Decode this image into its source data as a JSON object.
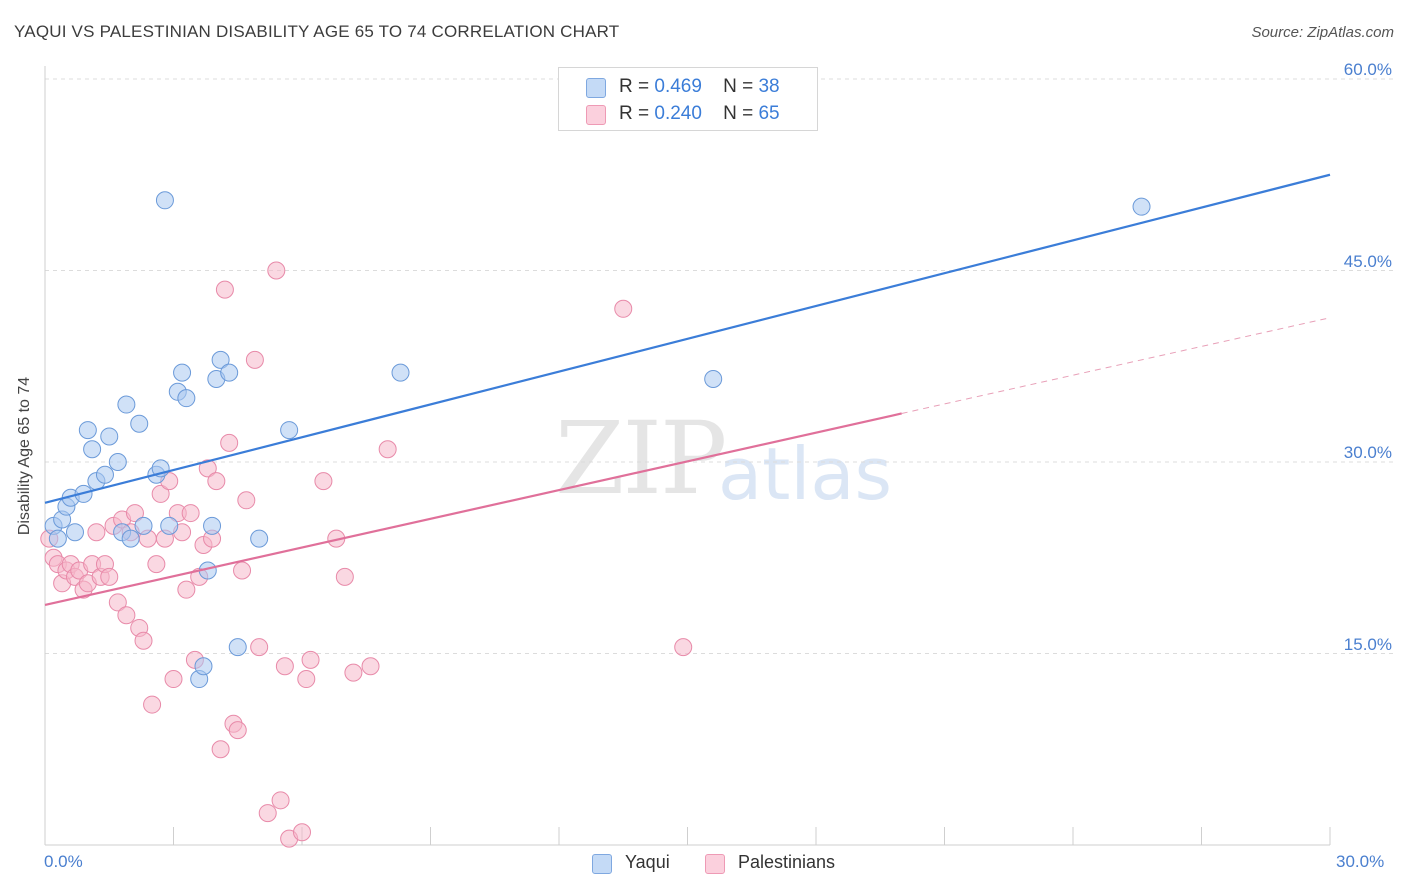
{
  "header": {
    "title": "YAQUI VS PALESTINIAN DISABILITY AGE 65 TO 74 CORRELATION CHART",
    "source": "Source: ZipAtlas.com"
  },
  "watermark": {
    "zip": "ZIP",
    "atlas": "atlas"
  },
  "legend_top": {
    "rows": [
      {
        "r_label": "R =",
        "r_value": "0.469",
        "n_label": "N =",
        "n_value": "38",
        "color": "#a9c8f0"
      },
      {
        "r_label": "R =",
        "r_value": "0.240",
        "n_label": "N =",
        "n_value": "65",
        "color": "#f5b8cb"
      }
    ]
  },
  "legend_bottom": {
    "items": [
      {
        "label": "Yaqui",
        "color": "#a9c8f0"
      },
      {
        "label": "Palestinians",
        "color": "#f5b8cb"
      }
    ]
  },
  "chart_data": {
    "type": "scatter",
    "title": "YAQUI VS PALESTINIAN DISABILITY AGE 65 TO 74 CORRELATION CHART",
    "xlabel": "",
    "ylabel": "Disability Age 65 to 74",
    "xlim": [
      0,
      30
    ],
    "ylim": [
      0,
      60
    ],
    "x_tick_labels": [
      "0.0%",
      "30.0%"
    ],
    "y_ticks": [
      15,
      30,
      45,
      60
    ],
    "y_tick_labels": [
      "15.0%",
      "30.0%",
      "45.0%",
      "60.0%"
    ],
    "grid": true,
    "colors": {
      "yaqui": "#3b7dd8",
      "yaqui_fill": "#a9c8f0",
      "pal": "#e0709a",
      "pal_fill": "#f5b8cb"
    },
    "series": [
      {
        "name": "Yaqui",
        "r": 0.469,
        "n": 38,
        "trend": {
          "x": [
            0,
            30
          ],
          "y": [
            26.8,
            52.5
          ],
          "dashed_from": null
        },
        "points": [
          [
            0.2,
            25.0
          ],
          [
            0.3,
            24.0
          ],
          [
            0.4,
            25.5
          ],
          [
            0.5,
            26.5
          ],
          [
            0.6,
            27.2
          ],
          [
            0.7,
            24.5
          ],
          [
            0.9,
            27.5
          ],
          [
            1.0,
            32.5
          ],
          [
            1.1,
            31.0
          ],
          [
            1.2,
            28.5
          ],
          [
            1.4,
            29.0
          ],
          [
            1.5,
            32.0
          ],
          [
            1.7,
            30.0
          ],
          [
            1.8,
            24.5
          ],
          [
            1.9,
            34.5
          ],
          [
            2.0,
            24.0
          ],
          [
            2.2,
            33.0
          ],
          [
            2.3,
            25.0
          ],
          [
            2.6,
            29.0
          ],
          [
            2.7,
            29.5
          ],
          [
            2.8,
            50.5
          ],
          [
            2.9,
            25.0
          ],
          [
            3.1,
            35.5
          ],
          [
            3.2,
            37.0
          ],
          [
            3.3,
            35.0
          ],
          [
            3.6,
            13.0
          ],
          [
            3.7,
            14.0
          ],
          [
            3.8,
            21.5
          ],
          [
            3.9,
            25.0
          ],
          [
            4.0,
            36.5
          ],
          [
            4.1,
            38.0
          ],
          [
            4.3,
            37.0
          ],
          [
            4.5,
            15.5
          ],
          [
            5.0,
            24.0
          ],
          [
            5.7,
            32.5
          ],
          [
            8.3,
            37.0
          ],
          [
            15.6,
            36.5
          ],
          [
            25.6,
            50.0
          ]
        ]
      },
      {
        "name": "Palestinians",
        "r": 0.24,
        "n": 65,
        "trend": {
          "x": [
            0,
            30
          ],
          "y": [
            18.8,
            41.3
          ],
          "dashed_from": 20.0
        },
        "points": [
          [
            0.1,
            24.0
          ],
          [
            0.2,
            22.5
          ],
          [
            0.3,
            22.0
          ],
          [
            0.4,
            20.5
          ],
          [
            0.5,
            21.5
          ],
          [
            0.6,
            22.0
          ],
          [
            0.7,
            21.0
          ],
          [
            0.8,
            21.5
          ],
          [
            0.9,
            20.0
          ],
          [
            1.0,
            20.5
          ],
          [
            1.1,
            22.0
          ],
          [
            1.2,
            24.5
          ],
          [
            1.3,
            21.0
          ],
          [
            1.4,
            22.0
          ],
          [
            1.5,
            21.0
          ],
          [
            1.6,
            25.0
          ],
          [
            1.7,
            19.0
          ],
          [
            1.8,
            25.5
          ],
          [
            1.9,
            18.0
          ],
          [
            2.0,
            24.5
          ],
          [
            2.1,
            26.0
          ],
          [
            2.2,
            17.0
          ],
          [
            2.3,
            16.0
          ],
          [
            2.4,
            24.0
          ],
          [
            2.5,
            11.0
          ],
          [
            2.6,
            22.0
          ],
          [
            2.7,
            27.5
          ],
          [
            2.8,
            24.0
          ],
          [
            2.9,
            28.5
          ],
          [
            3.0,
            13.0
          ],
          [
            3.1,
            26.0
          ],
          [
            3.2,
            24.5
          ],
          [
            3.3,
            20.0
          ],
          [
            3.4,
            26.0
          ],
          [
            3.5,
            14.5
          ],
          [
            3.6,
            21.0
          ],
          [
            3.7,
            23.5
          ],
          [
            3.8,
            29.5
          ],
          [
            3.9,
            24.0
          ],
          [
            4.0,
            28.5
          ],
          [
            4.1,
            7.5
          ],
          [
            4.2,
            43.5
          ],
          [
            4.3,
            31.5
          ],
          [
            4.4,
            9.5
          ],
          [
            4.5,
            9.0
          ],
          [
            4.6,
            21.5
          ],
          [
            4.7,
            27.0
          ],
          [
            4.9,
            38.0
          ],
          [
            5.0,
            15.5
          ],
          [
            5.2,
            2.5
          ],
          [
            5.4,
            45.0
          ],
          [
            5.5,
            3.5
          ],
          [
            5.6,
            14.0
          ],
          [
            5.7,
            0.5
          ],
          [
            6.0,
            1.0
          ],
          [
            6.1,
            13.0
          ],
          [
            6.2,
            14.5
          ],
          [
            6.5,
            28.5
          ],
          [
            6.8,
            24.0
          ],
          [
            7.0,
            21.0
          ],
          [
            7.2,
            13.5
          ],
          [
            7.6,
            14.0
          ],
          [
            8.0,
            31.0
          ],
          [
            13.5,
            42.0
          ],
          [
            14.9,
            15.5
          ]
        ]
      }
    ]
  }
}
